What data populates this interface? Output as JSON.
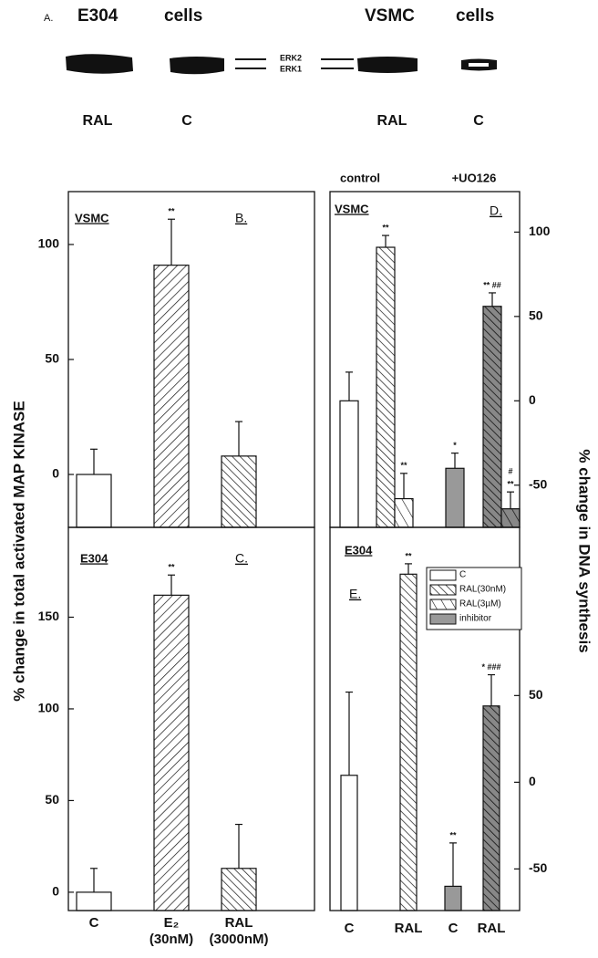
{
  "blot": {
    "label": "A.",
    "groups": [
      {
        "cell": "E304",
        "word": "cells"
      },
      {
        "cell": "VSMC",
        "word": "cells"
      }
    ],
    "lanes": [
      "RAL",
      "C",
      "RAL",
      "C"
    ],
    "bands": [
      "ERK2",
      "ERK1"
    ]
  },
  "chart_data": [
    {
      "type": "bar",
      "panel": "B.",
      "cell": "VSMC",
      "categories": [
        null,
        null,
        null
      ],
      "values": [
        0,
        91,
        8
      ],
      "errors": [
        11,
        20,
        15
      ],
      "styles": [
        "open",
        "hatch-a",
        "hatch-b"
      ],
      "ylim": [
        -23,
        123
      ],
      "yticks": [
        0,
        50,
        100
      ],
      "ylabel": "% change in total activated MAP KINASE",
      "annotations": [
        {
          "bar": 1,
          "texts": [
            "**"
          ]
        }
      ]
    },
    {
      "type": "bar",
      "panel": "C.",
      "cell": "E304",
      "categories": [
        [
          "C"
        ],
        [
          "E₂",
          "(30nM)"
        ],
        [
          "RAL",
          "(3000nM)"
        ]
      ],
      "values": [
        0,
        162,
        13
      ],
      "errors": [
        13,
        11,
        24
      ],
      "styles": [
        "open",
        "hatch-a",
        "hatch-b"
      ],
      "ylim": [
        -10,
        199
      ],
      "yticks": [
        0,
        50,
        100,
        150
      ],
      "annotations": [
        {
          "bar": 1,
          "texts": [
            "**"
          ]
        }
      ]
    },
    {
      "type": "bar",
      "panel": "D.",
      "cell": "VSMC",
      "groups": [
        "control",
        "+UO126"
      ],
      "categories": [
        null,
        null,
        null,
        null,
        null,
        null
      ],
      "values": [
        0,
        91,
        -58,
        -40,
        56,
        -64
      ],
      "errors": [
        17,
        7,
        15,
        9,
        8,
        10
      ],
      "styles": [
        "open",
        "hatch-b",
        "hatch-c",
        "gray",
        "gray-hatch-b",
        "gray-hatch-c"
      ],
      "ylim": [
        -75,
        124
      ],
      "yticks": [
        -50,
        0,
        50,
        100
      ],
      "ylabel": "% change in DNA synthesis",
      "annotations": [
        {
          "bar": 1,
          "texts": [
            "**"
          ]
        },
        {
          "bar": 2,
          "texts": [
            "**"
          ]
        },
        {
          "bar": 3,
          "texts": [
            "*"
          ]
        },
        {
          "bar": 4,
          "texts": [
            "** ##"
          ]
        },
        {
          "bar": 5,
          "texts": [
            "**",
            "#"
          ]
        }
      ]
    },
    {
      "type": "bar",
      "panel": "E.",
      "cell": "E304",
      "categories": [
        [
          "C"
        ],
        [
          "RAL"
        ],
        [
          "C"
        ],
        [
          "RAL"
        ]
      ],
      "values": [
        4,
        120,
        -60,
        44
      ],
      "errors": [
        48,
        6,
        25,
        18
      ],
      "styles": [
        "open",
        "hatch-b",
        "gray",
        "gray-hatch-b"
      ],
      "ylim": [
        -74,
        147
      ],
      "yticks": [
        -50,
        0,
        50
      ],
      "legend": [
        {
          "name": "C",
          "style": "open"
        },
        {
          "name": "RAL(30nM)",
          "style": "hatch-b"
        },
        {
          "name": "RAL(3µM)",
          "style": "hatch-c"
        },
        {
          "name": "inhibitor",
          "style": "gray"
        }
      ],
      "annotations": [
        {
          "bar": 1,
          "texts": [
            "**"
          ]
        },
        {
          "bar": 2,
          "texts": [
            "**"
          ]
        },
        {
          "bar": 3,
          "texts": [
            "* ###"
          ]
        }
      ]
    }
  ]
}
